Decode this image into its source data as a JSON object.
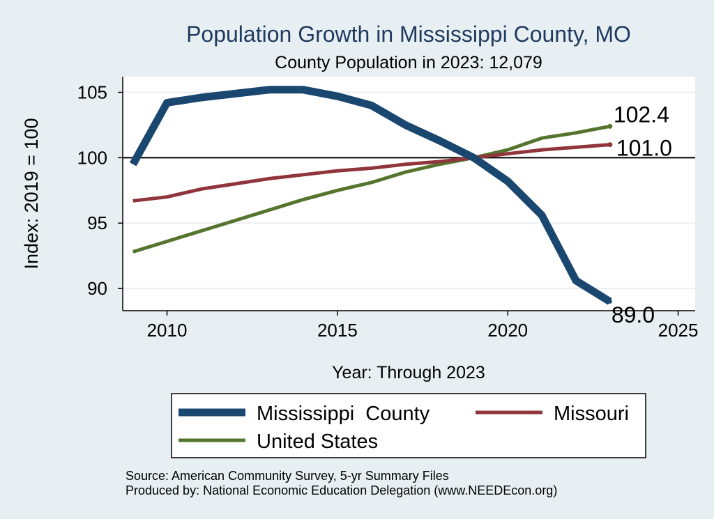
{
  "colors": {
    "background": "#e8eff2",
    "plot_background": "#ffffff",
    "gridline": "#e8eff2",
    "axis": "#000000",
    "title": "#1f3a5f",
    "reference_line": "#000000"
  },
  "chart_data": {
    "type": "line",
    "title": "Population Growth in Mississippi County, MO",
    "subtitle": "County Population in 2023: 12,079",
    "xlabel": "Year: Through 2023",
    "ylabel": "Index: 2019 = 100",
    "xlim": [
      2008.7,
      2025.5
    ],
    "ylim": [
      88.3,
      106.2
    ],
    "xticks": [
      2010,
      2015,
      2020,
      2025
    ],
    "yticks": [
      90,
      95,
      100,
      105
    ],
    "x_tick_labels": [
      "2010",
      "2015",
      "2020",
      "2025"
    ],
    "y_tick_labels": [
      "90",
      "95",
      "100",
      "105"
    ],
    "reference_line": 100,
    "grid": true,
    "legend_position": "bottom",
    "x": [
      2009,
      2010,
      2011,
      2012,
      2013,
      2014,
      2015,
      2016,
      2017,
      2018,
      2019,
      2020,
      2021,
      2022,
      2023
    ],
    "series": [
      {
        "name": "Mississippi  County",
        "color": "#1a476f",
        "values": [
          99.5,
          104.2,
          104.6,
          104.9,
          105.2,
          105.2,
          104.7,
          104.0,
          102.5,
          101.3,
          100.0,
          98.2,
          95.6,
          90.6,
          89.0
        ],
        "end_label": "89.0"
      },
      {
        "name": "Missouri",
        "color": "#90353b",
        "values": [
          96.7,
          97.0,
          97.6,
          98.0,
          98.4,
          98.7,
          99.0,
          99.2,
          99.5,
          99.7,
          100.0,
          100.3,
          100.6,
          100.8,
          101.0
        ],
        "end_label": "101.0"
      },
      {
        "name": "United States",
        "color": "#55752f",
        "values": [
          92.8,
          93.6,
          94.4,
          95.2,
          96.0,
          96.8,
          97.5,
          98.1,
          98.9,
          99.5,
          100.0,
          100.6,
          101.5,
          101.9,
          102.4
        ],
        "end_label": "102.4"
      }
    ]
  },
  "footer": {
    "source": "Source: American Community Survey, 5-yr Summary Files",
    "produced_by": "Produced by: National Economic Education Delegation (www.NEEDEcon.org)"
  }
}
